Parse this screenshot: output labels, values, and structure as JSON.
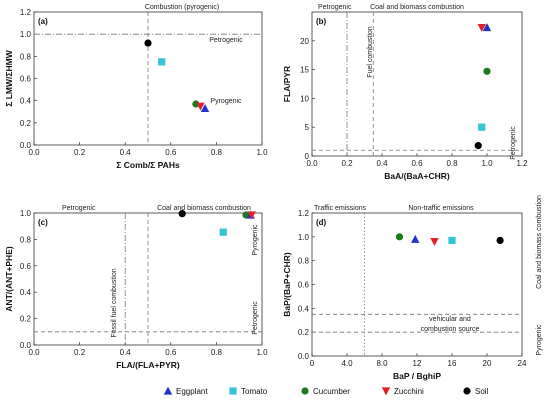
{
  "legend": [
    {
      "name": "Eggplant",
      "marker": "triangle-up",
      "color": "#2233cc"
    },
    {
      "name": "Tomato",
      "marker": "square",
      "color": "#33c4d6"
    },
    {
      "name": "Cucumber",
      "marker": "circle",
      "color": "#1e7a1e"
    },
    {
      "name": "Zucchini",
      "marker": "triangle-down",
      "color": "#e0202a"
    },
    {
      "name": "Soil",
      "marker": "circle",
      "color": "#000000"
    }
  ],
  "chart_data": [
    {
      "type": "scatter",
      "panel": "(a)",
      "title": "Combustion (pyrogenic)",
      "xlabel": "Σ Comb/Σ PAHs",
      "ylabel": "Σ LMW/ΣHMW",
      "xlim": [
        0,
        1.0
      ],
      "ylim": [
        0,
        1.2
      ],
      "xticks": [
        "0.0",
        "0.2",
        "0.4",
        "0.6",
        "0.8",
        "1.0"
      ],
      "yticks": [
        "0.0",
        "0.2",
        "0.4",
        "0.6",
        "0.8",
        "1.0",
        "1.2"
      ],
      "ref_lines": [
        {
          "axis": "y",
          "value": 1.0,
          "style": "dashdot"
        },
        {
          "axis": "x",
          "value": 0.5,
          "style": "dashed"
        }
      ],
      "annotations": [
        {
          "text": "Petrogenic",
          "anchor": "right-upper"
        },
        {
          "text": "Pyrogenic",
          "anchor": "right-lower"
        }
      ],
      "points": [
        {
          "series": "Soil",
          "x": 0.5,
          "y": 0.92
        },
        {
          "series": "Tomato",
          "x": 0.56,
          "y": 0.75
        },
        {
          "series": "Cucumber",
          "x": 0.71,
          "y": 0.37
        },
        {
          "series": "Zucchini",
          "x": 0.73,
          "y": 0.35
        },
        {
          "series": "Eggplant",
          "x": 0.75,
          "y": 0.33
        }
      ]
    },
    {
      "type": "scatter",
      "panel": "(b)",
      "title": "Coal and biomass combustion",
      "xlabel": "BaA/(BaA+CHR)",
      "ylabel": "FLA/PYR",
      "xlim": [
        0,
        1.2
      ],
      "ylim": [
        0,
        25
      ],
      "xticks": [
        "0.0",
        "0.2",
        "0.4",
        "0.6",
        "0.8",
        "1.0",
        "1.2"
      ],
      "yticks": [
        "0",
        "5",
        "10",
        "15",
        "20"
      ],
      "ref_lines": [
        {
          "axis": "x",
          "value": 0.2,
          "style": "dashdot"
        },
        {
          "axis": "x",
          "value": 0.35,
          "style": "dashed"
        },
        {
          "axis": "y",
          "value": 1.0,
          "style": "dashed"
        }
      ],
      "annotations": [
        {
          "text": "Petrogenic",
          "anchor": "top-left"
        },
        {
          "text": "Fuel combustion",
          "anchor": "vertical"
        },
        {
          "text": "Petrogenic",
          "anchor": "right-lower-vertical"
        }
      ],
      "points": [
        {
          "series": "Zucchini",
          "x": 0.97,
          "y": 22.3
        },
        {
          "series": "Eggplant",
          "x": 1.0,
          "y": 22.3
        },
        {
          "series": "Cucumber",
          "x": 1.0,
          "y": 14.7
        },
        {
          "series": "Tomato",
          "x": 0.97,
          "y": 5.0
        },
        {
          "series": "Soil",
          "x": 0.95,
          "y": 1.8
        }
      ]
    },
    {
      "type": "scatter",
      "panel": "(c)",
      "title": "Coal and biomass combustion",
      "xlabel": "FLA/(FLA+PYR)",
      "ylabel": "ANT/(ANT+PHE)",
      "xlim": [
        0,
        1.0
      ],
      "ylim": [
        0,
        1.0
      ],
      "xticks": [
        "0.0",
        "0.2",
        "0.4",
        "0.6",
        "0.8",
        "1.0"
      ],
      "yticks": [
        "0.0",
        "0.2",
        "0.4",
        "0.6",
        "0.8",
        "1.0"
      ],
      "ref_lines": [
        {
          "axis": "x",
          "value": 0.4,
          "style": "dashdot"
        },
        {
          "axis": "x",
          "value": 0.5,
          "style": "dashed"
        },
        {
          "axis": "y",
          "value": 0.1,
          "style": "dashed"
        }
      ],
      "annotations": [
        {
          "text": "Petrogenic",
          "anchor": "top-left"
        },
        {
          "text": "Fossil fuel combustion",
          "anchor": "vertical"
        },
        {
          "text": "Pyrogenic",
          "anchor": "right-vertical"
        },
        {
          "text": "Petrogenic",
          "anchor": "right-lower-vertical"
        }
      ],
      "points": [
        {
          "series": "Soil",
          "x": 0.65,
          "y": 0.995
        },
        {
          "series": "Tomato",
          "x": 0.83,
          "y": 0.855
        },
        {
          "series": "Cucumber",
          "x": 0.93,
          "y": 0.985
        },
        {
          "series": "Eggplant",
          "x": 0.95,
          "y": 0.985
        },
        {
          "series": "Zucchini",
          "x": 0.955,
          "y": 0.985
        }
      ]
    },
    {
      "type": "scatter",
      "panel": "(d)",
      "title": "Non-traffic emissions",
      "xlabel": "BaP / BghiP",
      "ylabel": "BaP/(BaP+CHR)",
      "xlim": [
        0,
        24
      ],
      "ylim": [
        0,
        1.2
      ],
      "xticks": [
        "0",
        "4.0",
        "8.0",
        "12",
        "16",
        "20",
        "24"
      ],
      "yticks": [
        "0.0",
        "0.2",
        "0.4",
        "0.6",
        "0.8",
        "1.0",
        "1.2"
      ],
      "ref_lines": [
        {
          "axis": "x",
          "value": 6.0,
          "style": "dotted"
        },
        {
          "axis": "y",
          "value": 0.35,
          "style": "dashed"
        },
        {
          "axis": "y",
          "value": 0.2,
          "style": "dashed"
        }
      ],
      "annotations": [
        {
          "text": "Traffic emissions",
          "anchor": "top-left"
        },
        {
          "text": "vehicular and",
          "anchor": "lower-right-1"
        },
        {
          "text": "combustion source",
          "anchor": "lower-right-2"
        },
        {
          "text": "Coal and biomass combustion",
          "anchor": "right-vertical"
        },
        {
          "text": "Pyrogenic",
          "anchor": "right-lower-vertical"
        }
      ],
      "points": [
        {
          "series": "Cucumber",
          "x": 10,
          "y": 1.0
        },
        {
          "series": "Eggplant",
          "x": 11.8,
          "y": 0.98
        },
        {
          "series": "Zucchini",
          "x": 14,
          "y": 0.96
        },
        {
          "series": "Tomato",
          "x": 16,
          "y": 0.97
        },
        {
          "series": "Soil",
          "x": 21.5,
          "y": 0.97
        }
      ]
    }
  ]
}
